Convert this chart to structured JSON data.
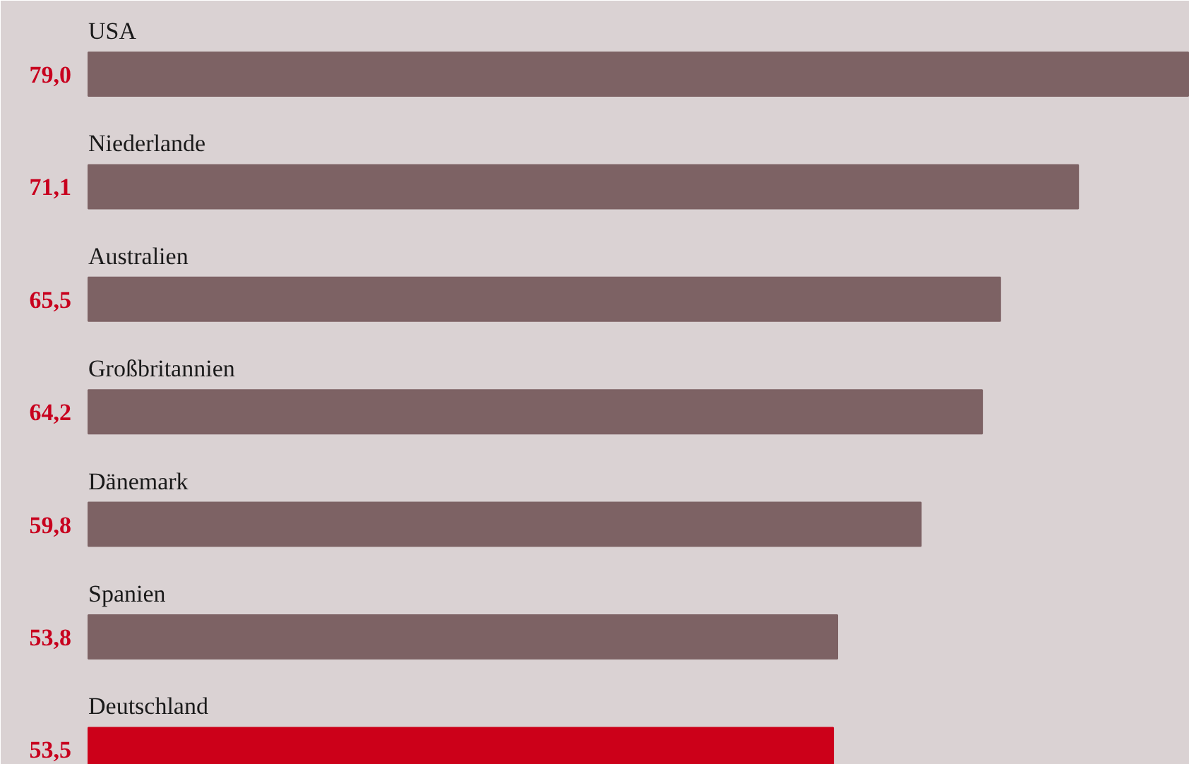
{
  "chart_data": {
    "type": "bar",
    "orientation": "horizontal",
    "categories": [
      "USA",
      "Niederlande",
      "Australien",
      "Großbritannien",
      "Dänemark",
      "Spanien",
      "Deutschland"
    ],
    "values": [
      79.0,
      71.1,
      65.5,
      64.2,
      59.8,
      53.8,
      53.5
    ],
    "colors": [
      "#7d6264",
      "#7d6264",
      "#7d6264",
      "#7d6264",
      "#7d6264",
      "#7d6264",
      "#cc0019"
    ],
    "value_labels": [
      "79,0",
      "71,1",
      "65,5",
      "64,2",
      "59,8",
      "53,8",
      "53,5"
    ]
  }
}
